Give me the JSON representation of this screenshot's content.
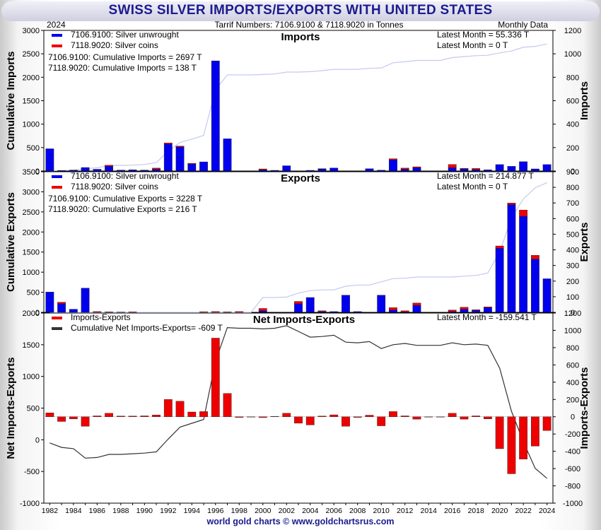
{
  "header": {
    "title": "SWISS SILVER IMPORTS/EXPORTS WITH UNITED STATES",
    "year": "2024",
    "subtitle": "Tarrif Numbers: 7106.9100 & 7118.9020 in Tonnes",
    "frequency": "Monthly Data"
  },
  "footer": {
    "credit": "world gold charts © www.goldchartsrus.com"
  },
  "colors": {
    "unwrought": "#0000ee",
    "coins": "#ee0000",
    "cum_line": "#c3c9f0",
    "net_line": "#333333",
    "title": "#1b1b8f"
  },
  "chart_data": [
    {
      "type": "bar",
      "title": "Imports",
      "ylabel_left": "Cumulative Imports",
      "ylabel_right": "Imports",
      "left_ylim": [
        0,
        3000
      ],
      "left_ticks": [
        0,
        500,
        1000,
        1500,
        2000,
        2500,
        3000
      ],
      "right_ylim": [
        0,
        1200
      ],
      "right_ticks": [
        0,
        200,
        400,
        600,
        800,
        1000,
        1200
      ],
      "legend": [
        "7106.9100: Silver unwrought",
        "7118.9020: Silver coins"
      ],
      "notes": [
        "7106.9100: Cumulative Imports = 2697 T",
        "7118.9020: Cumulative Imports = 138 T"
      ],
      "latest": [
        "Latest Month = 55.336 T",
        "Latest Month = 0 T"
      ],
      "x": [
        1982,
        1983,
        1984,
        1985,
        1986,
        1987,
        1988,
        1989,
        1990,
        1991,
        1992,
        1993,
        1994,
        1995,
        1996,
        1997,
        1998,
        1999,
        2000,
        2001,
        2002,
        2003,
        2004,
        2005,
        2006,
        2007,
        2008,
        2009,
        2010,
        2011,
        2012,
        2013,
        2014,
        2015,
        2016,
        2017,
        2018,
        2019,
        2020,
        2021,
        2022,
        2023,
        2024
      ],
      "series": [
        {
          "name": "7106.9100: Silver unwrought",
          "values": [
            190,
            5,
            8,
            30,
            15,
            40,
            8,
            10,
            8,
            15,
            230,
            205,
            60,
            78,
            940,
            275,
            0,
            0,
            10,
            6,
            45,
            0,
            6,
            18,
            26,
            0,
            0,
            20,
            7,
            95,
            15,
            28,
            0,
            0,
            28,
            18,
            12,
            10,
            55,
            40,
            80,
            18,
            55
          ]
        },
        {
          "name": "7118.9020: Silver coins",
          "values": [
            0,
            0,
            0,
            0,
            0,
            10,
            0,
            0,
            0,
            10,
            10,
            8,
            6,
            0,
            0,
            0,
            0,
            0,
            8,
            0,
            0,
            0,
            0,
            2,
            0,
            0,
            0,
            0,
            0,
            10,
            10,
            8,
            0,
            0,
            28,
            5,
            10,
            0,
            0,
            0,
            0,
            0,
            0
          ]
        },
        {
          "name": "Cumulative",
          "axis": "left",
          "values": [
            5,
            10,
            20,
            50,
            70,
            115,
            120,
            125,
            140,
            180,
            420,
            610,
            680,
            760,
            1730,
            2050,
            2050,
            2050,
            2060,
            2070,
            2110,
            2110,
            2120,
            2140,
            2170,
            2170,
            2170,
            2190,
            2200,
            2310,
            2330,
            2360,
            2360,
            2360,
            2420,
            2440,
            2460,
            2470,
            2520,
            2560,
            2640,
            2660,
            2710
          ]
        }
      ]
    },
    {
      "type": "bar",
      "title": "Exports",
      "ylabel_left": "Cumulative Exports",
      "ylabel_right": "Exports",
      "left_ylim": [
        0,
        3500
      ],
      "left_ticks": [
        0,
        500,
        1000,
        1500,
        2000,
        2500,
        3000,
        3500
      ],
      "right_ylim": [
        0,
        900
      ],
      "right_ticks": [
        0,
        100,
        200,
        300,
        400,
        500,
        600,
        700,
        800,
        900
      ],
      "legend": [
        "7106.9100: Silver unwrought",
        "7118.9020: Silver coins"
      ],
      "notes": [
        "7106.9100: Cumulative Exports = 3228 T",
        "7118.9020: Cumulative Exports = 216 T"
      ],
      "latest": [
        "Latest Month = 214.877 T",
        "Latest Month = 0 T"
      ],
      "x": [
        1982,
        1983,
        1984,
        1985,
        1986,
        1987,
        1988,
        1989,
        1990,
        1991,
        1992,
        1993,
        1994,
        1995,
        1996,
        1997,
        1998,
        1999,
        2000,
        2001,
        2002,
        2003,
        2004,
        2005,
        2006,
        2007,
        2008,
        2009,
        2010,
        2011,
        2012,
        2013,
        2014,
        2015,
        2016,
        2017,
        2018,
        2019,
        2020,
        2021,
        2022,
        2023,
        2024
      ],
      "series": [
        {
          "name": "7106.9100: Silver unwrought",
          "values": [
            130,
            55,
            20,
            155,
            0,
            0,
            0,
            0,
            0,
            0,
            0,
            0,
            0,
            0,
            0,
            0,
            0,
            0,
            10,
            0,
            0,
            55,
            95,
            5,
            5,
            110,
            5,
            0,
            110,
            15,
            3,
            45,
            0,
            0,
            5,
            20,
            12,
            30,
            410,
            690,
            615,
            340,
            215
          ]
        },
        {
          "name": "7118.9020: Silver coins",
          "values": [
            0,
            10,
            0,
            0,
            5,
            3,
            2,
            3,
            0,
            0,
            0,
            0,
            0,
            4,
            5,
            3,
            5,
            0,
            15,
            0,
            0,
            15,
            0,
            5,
            0,
            0,
            0,
            0,
            0,
            15,
            7,
            15,
            0,
            0,
            10,
            13,
            5,
            5,
            15,
            10,
            40,
            25,
            0
          ]
        },
        {
          "name": "Cumulative",
          "axis": "left",
          "values": [
            0,
            0,
            0,
            0,
            0,
            0,
            0,
            0,
            0,
            0,
            0,
            0,
            0,
            0,
            0,
            0,
            0,
            0,
            370,
            370,
            380,
            480,
            540,
            560,
            560,
            650,
            680,
            680,
            760,
            840,
            850,
            880,
            880,
            880,
            880,
            900,
            920,
            980,
            1500,
            2350,
            2820,
            3100,
            3230
          ]
        }
      ]
    },
    {
      "type": "bar",
      "title": "Net Imports-Exports",
      "ylabel_left": "Net Imports-Exports",
      "ylabel_right": "Imports-Exports",
      "left_ylim": [
        -1000,
        2000
      ],
      "left_ticks": [
        -1000,
        -500,
        0,
        500,
        1000,
        1500,
        2000
      ],
      "right_ylim": [
        -1000,
        1200
      ],
      "right_ticks": [
        -1000,
        -800,
        -600,
        -400,
        -200,
        0,
        200,
        400,
        600,
        800,
        1000,
        1200
      ],
      "legend": [
        "Imports-Exports",
        "Cumulative Net Imports-Exports= -609 T"
      ],
      "latest": [
        "Latest Month = -159.541 T"
      ],
      "x": [
        1982,
        1983,
        1984,
        1985,
        1986,
        1987,
        1988,
        1989,
        1990,
        1991,
        1992,
        1993,
        1994,
        1995,
        1996,
        1997,
        1998,
        1999,
        2000,
        2001,
        2002,
        2003,
        2004,
        2005,
        2006,
        2007,
        2008,
        2009,
        2010,
        2011,
        2012,
        2013,
        2014,
        2015,
        2016,
        2017,
        2018,
        2019,
        2020,
        2021,
        2022,
        2023,
        2024
      ],
      "series": [
        {
          "name": "Imports-Exports",
          "axis": "right",
          "values": [
            45,
            -55,
            -25,
            -110,
            10,
            40,
            8,
            8,
            10,
            20,
            200,
            180,
            55,
            60,
            910,
            270,
            -8,
            0,
            -10,
            5,
            40,
            -75,
            -95,
            8,
            22,
            -110,
            -8,
            18,
            -105,
            60,
            10,
            -28,
            0,
            0,
            40,
            -28,
            10,
            -25,
            -370,
            -660,
            -490,
            -340,
            -160
          ]
        },
        {
          "name": "Cumulative Net Imports-Exports",
          "axis": "left",
          "values": [
            -50,
            -120,
            -140,
            -290,
            -280,
            -230,
            -230,
            -220,
            -210,
            -190,
            10,
            200,
            260,
            320,
            1240,
            1770,
            1760,
            1760,
            1750,
            1760,
            1800,
            1710,
            1620,
            1630,
            1650,
            1540,
            1530,
            1550,
            1440,
            1500,
            1520,
            1490,
            1490,
            1490,
            1530,
            1500,
            1510,
            1490,
            1130,
            450,
            -30,
            -450,
            -609
          ]
        }
      ]
    }
  ]
}
